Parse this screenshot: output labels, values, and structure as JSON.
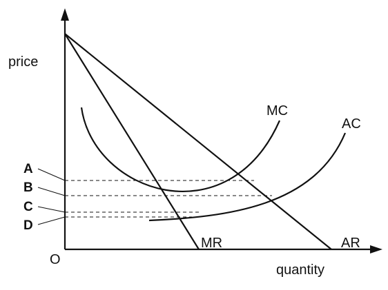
{
  "axes": {
    "y_label": "price",
    "x_label": "quantity",
    "origin_label": "O"
  },
  "curves": {
    "mc": "MC",
    "ac": "AC",
    "mr": "MR",
    "ar": "AR"
  },
  "price_levels": [
    "A",
    "B",
    "C",
    "D"
  ]
}
